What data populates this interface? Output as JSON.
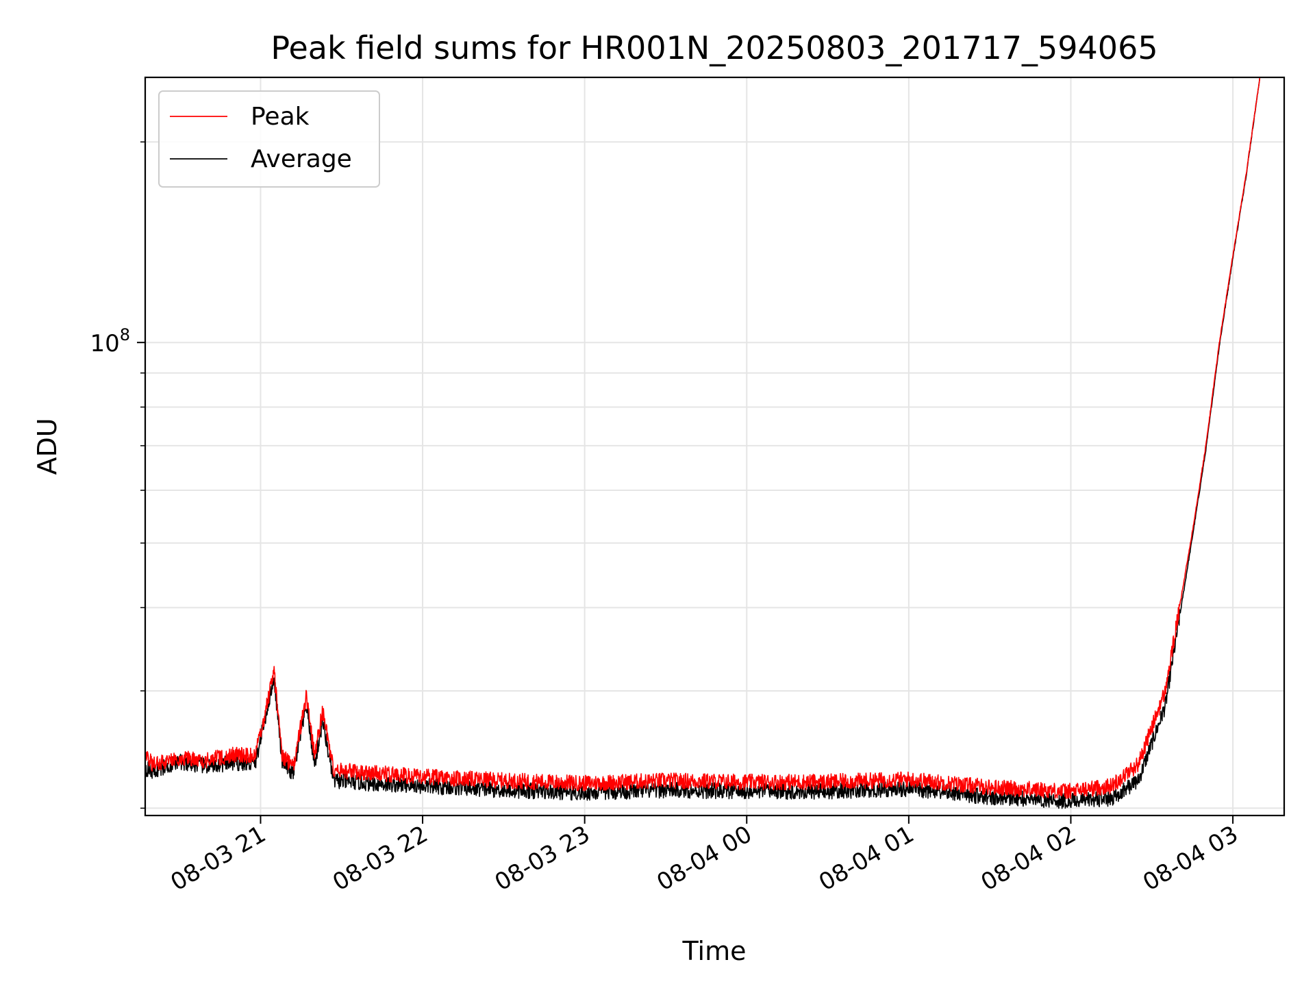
{
  "chart_data": {
    "type": "line",
    "title": "Peak field sums for HR001N_20250803_201717_594065",
    "xlabel": "Time",
    "ylabel": "ADU",
    "yscale": "log",
    "y_tick_labels": [
      {
        "value": 100000000,
        "base": "10",
        "exp": "8"
      }
    ],
    "ylim": [
      19500000,
      250000000
    ],
    "xlim": [
      "2025-08-03 20:17:17",
      "2025-08-04 03:19:00"
    ],
    "x_tick_labels": [
      "08-03 21",
      "08-03 22",
      "08-03 23",
      "08-04 00",
      "08-04 01",
      "08-04 02",
      "08-04 03"
    ],
    "x_ticks": [
      "2025-08-03 21:00",
      "2025-08-03 22:00",
      "2025-08-03 23:00",
      "2025-08-04 00:00",
      "2025-08-04 01:00",
      "2025-08-04 02:00",
      "2025-08-04 03:00"
    ],
    "grid": true,
    "legend": {
      "position": "top-left"
    },
    "series": [
      {
        "name": "Peak",
        "color": "#ff0000",
        "points": [
          [
            "2025-08-03 20:17",
            24000000
          ],
          [
            "2025-08-03 20:20",
            23300000
          ],
          [
            "2025-08-03 20:30",
            23800000
          ],
          [
            "2025-08-03 20:40",
            23600000
          ],
          [
            "2025-08-03 20:50",
            24100000
          ],
          [
            "2025-08-03 20:58",
            23900000
          ],
          [
            "2025-08-03 21:05",
            32000000
          ],
          [
            "2025-08-03 21:08",
            24000000
          ],
          [
            "2025-08-03 21:12",
            23000000
          ],
          [
            "2025-08-03 21:17",
            29500000
          ],
          [
            "2025-08-03 21:20",
            24000000
          ],
          [
            "2025-08-03 21:23",
            28000000
          ],
          [
            "2025-08-03 21:27",
            22800000
          ],
          [
            "2025-08-03 21:40",
            22600000
          ],
          [
            "2025-08-03 22:00",
            22300000
          ],
          [
            "2025-08-03 22:30",
            22000000
          ],
          [
            "2025-08-03 23:00",
            21800000
          ],
          [
            "2025-08-03 23:30",
            22000000
          ],
          [
            "2025-08-04 00:00",
            21900000
          ],
          [
            "2025-08-04 00:30",
            21900000
          ],
          [
            "2025-08-04 01:00",
            22100000
          ],
          [
            "2025-08-04 01:30",
            21500000
          ],
          [
            "2025-08-04 02:00",
            21200000
          ],
          [
            "2025-08-04 02:15",
            21600000
          ],
          [
            "2025-08-04 02:25",
            23300000
          ],
          [
            "2025-08-04 02:35",
            30000000
          ],
          [
            "2025-08-04 02:45",
            52000000
          ],
          [
            "2025-08-04 02:50",
            70000000
          ],
          [
            "2025-08-04 02:55",
            100000000
          ],
          [
            "2025-08-04 03:00",
            135000000
          ],
          [
            "2025-08-04 03:05",
            180000000
          ],
          [
            "2025-08-04 03:10",
            250000000
          ]
        ]
      },
      {
        "name": "Average",
        "color": "#000000",
        "points": [
          [
            "2025-08-03 20:17",
            23000000
          ],
          [
            "2025-08-03 20:20",
            22700000
          ],
          [
            "2025-08-03 20:30",
            23500000
          ],
          [
            "2025-08-03 20:40",
            23100000
          ],
          [
            "2025-08-03 20:50",
            23400000
          ],
          [
            "2025-08-03 20:58",
            23300000
          ],
          [
            "2025-08-03 21:05",
            31500000
          ],
          [
            "2025-08-03 21:08",
            23500000
          ],
          [
            "2025-08-03 21:12",
            22500000
          ],
          [
            "2025-08-03 21:17",
            28500000
          ],
          [
            "2025-08-03 21:20",
            23200000
          ],
          [
            "2025-08-03 21:23",
            27000000
          ],
          [
            "2025-08-03 21:27",
            22000000
          ],
          [
            "2025-08-03 21:40",
            21800000
          ],
          [
            "2025-08-03 22:00",
            21600000
          ],
          [
            "2025-08-03 22:30",
            21300000
          ],
          [
            "2025-08-03 23:00",
            21100000
          ],
          [
            "2025-08-03 23:30",
            21300000
          ],
          [
            "2025-08-04 00:00",
            21200000
          ],
          [
            "2025-08-04 00:30",
            21200000
          ],
          [
            "2025-08-04 01:00",
            21400000
          ],
          [
            "2025-08-04 01:30",
            20800000
          ],
          [
            "2025-08-04 02:00",
            20500000
          ],
          [
            "2025-08-04 02:15",
            20700000
          ],
          [
            "2025-08-04 02:25",
            22000000
          ],
          [
            "2025-08-04 02:35",
            28500000
          ],
          [
            "2025-08-04 02:45",
            51000000
          ],
          [
            "2025-08-04 02:50",
            69000000
          ],
          [
            "2025-08-04 02:55",
            99000000
          ],
          [
            "2025-08-04 03:00",
            134000000
          ],
          [
            "2025-08-04 03:05",
            179000000
          ],
          [
            "2025-08-04 03:10",
            250000000
          ]
        ]
      }
    ]
  }
}
